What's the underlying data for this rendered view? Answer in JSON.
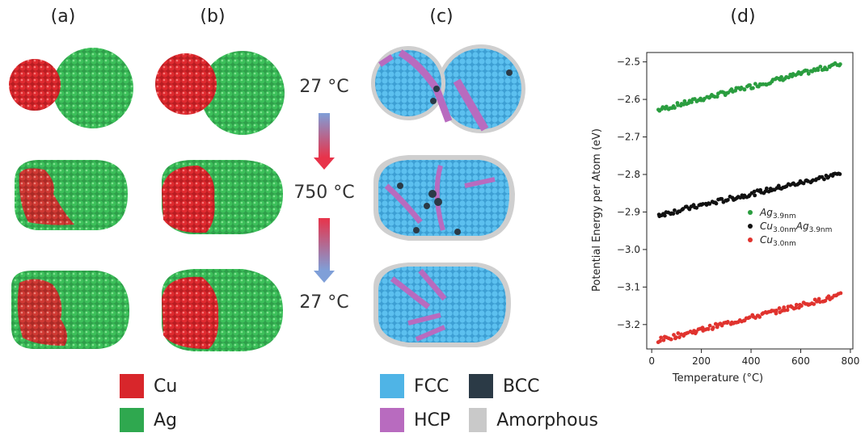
{
  "panel_labels": {
    "a": "(a)",
    "b": "(b)",
    "c": "(c)",
    "d": "(d)"
  },
  "temperatures": {
    "top": "27 °C",
    "middle": "750 °C",
    "bottom": "27 °C"
  },
  "colors": {
    "cu": "#d8262b",
    "ag": "#2fa84f",
    "fcc": "#4fb4e6",
    "hcp": "#b86bbf",
    "bcc": "#2b3a46",
    "amorphous": "#c9c9c9"
  },
  "legend_elements": [
    {
      "label": "Cu",
      "color": "#d8262b"
    },
    {
      "label": "Ag",
      "color": "#2fa84f"
    }
  ],
  "legend_structures": [
    {
      "label": "FCC",
      "color": "#4fb4e6"
    },
    {
      "label": "BCC",
      "color": "#2b3a46"
    },
    {
      "label": "HCP",
      "color": "#b86bbf"
    },
    {
      "label": "Amorphous",
      "color": "#c9c9c9"
    }
  ],
  "chart_data": {
    "type": "scatter",
    "xlabel": "Temperature (°C)",
    "ylabel": "Potential Energy per Atom (eV)",
    "xlim": [
      -20,
      810
    ],
    "ylim": [
      -3.265,
      -2.475
    ],
    "xticks": [
      0,
      200,
      400,
      600,
      800
    ],
    "xtick_labels": [
      "0",
      "200",
      "400",
      "600",
      "800"
    ],
    "yticks": [
      -3.2,
      -3.1,
      -3.0,
      -2.9,
      -2.8,
      -2.7,
      -2.6,
      -2.5
    ],
    "ytick_labels": [
      "−3.2",
      "−3.1",
      "−3.0",
      "−2.9",
      "−2.8",
      "−2.7",
      "−2.6",
      "−2.5"
    ],
    "legend_placement": "center-right",
    "series": [
      {
        "name": "Ag3.9nm",
        "legend_main": "Ag",
        "legend_sub": "3.9nm",
        "color": "#2a9d3f",
        "x_range": [
          27,
          760
        ],
        "y_range": [
          -2.628,
          -2.505
        ]
      },
      {
        "name": "Cu3.0nmAg3.9nm",
        "legend_main": "Cu",
        "legend_sub": "3.0nm",
        "legend_main2": "Ag",
        "legend_sub2": "3.9nm",
        "color": "#111111",
        "x_range": [
          27,
          760
        ],
        "y_range": [
          -2.908,
          -2.798
        ]
      },
      {
        "name": "Cu3.0nm",
        "legend_main": "Cu",
        "legend_sub": "3.0nm",
        "color": "#e0332e",
        "x_range": [
          27,
          760
        ],
        "y_range": [
          -3.242,
          -3.122
        ]
      }
    ]
  }
}
